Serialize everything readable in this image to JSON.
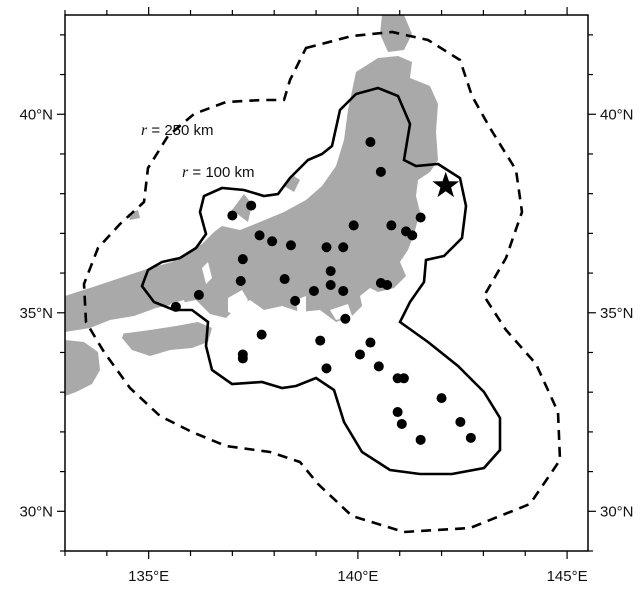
{
  "map": {
    "lon_range": [
      133,
      145.5
    ],
    "lat_range": [
      29,
      42.5
    ],
    "land_color": "#a9a9a9",
    "station_color": "#000000",
    "x_ticks": [
      {
        "lon": 135,
        "label": "135°E"
      },
      {
        "lon": 140,
        "label": "140°E"
      },
      {
        "lon": 145,
        "label": "145°E"
      }
    ],
    "y_ticks": [
      {
        "lat": 30,
        "label": "30°N"
      },
      {
        "lat": 35,
        "label": "35°N"
      },
      {
        "lat": 40,
        "label": "40°N"
      }
    ],
    "annotations": {
      "r250": {
        "var": "r",
        "text": " = 250 km"
      },
      "r100": {
        "var": "r",
        "text": " = 100 km"
      }
    },
    "epicenter": {
      "lon": 142.1,
      "lat": 38.2,
      "symbol": "star-icon"
    },
    "stations": [
      [
        140.3,
        39.3
      ],
      [
        140.55,
        38.55
      ],
      [
        141.5,
        37.4
      ],
      [
        141.15,
        37.05
      ],
      [
        141.3,
        36.95
      ],
      [
        140.8,
        37.2
      ],
      [
        139.9,
        37.2
      ],
      [
        137.0,
        37.45
      ],
      [
        137.45,
        37.7
      ],
      [
        137.65,
        36.95
      ],
      [
        137.95,
        36.8
      ],
      [
        138.4,
        36.7
      ],
      [
        137.25,
        36.35
      ],
      [
        137.2,
        35.8
      ],
      [
        138.25,
        35.85
      ],
      [
        139.25,
        36.65
      ],
      [
        139.65,
        36.65
      ],
      [
        139.35,
        36.05
      ],
      [
        139.35,
        35.7
      ],
      [
        139.65,
        35.55
      ],
      [
        140.55,
        35.75
      ],
      [
        140.7,
        35.7
      ],
      [
        138.5,
        35.3
      ],
      [
        138.95,
        35.55
      ],
      [
        136.2,
        35.45
      ],
      [
        135.65,
        35.15
      ],
      [
        137.7,
        34.45
      ],
      [
        139.7,
        34.85
      ],
      [
        139.1,
        34.3
      ],
      [
        140.3,
        34.25
      ],
      [
        140.05,
        33.95
      ],
      [
        137.25,
        33.85
      ],
      [
        137.25,
        33.95
      ],
      [
        139.25,
        33.6
      ],
      [
        140.5,
        33.65
      ],
      [
        140.95,
        33.35
      ],
      [
        141.1,
        33.35
      ],
      [
        142.0,
        32.85
      ],
      [
        140.95,
        32.5
      ],
      [
        141.05,
        32.2
      ],
      [
        142.45,
        32.25
      ],
      [
        142.7,
        31.85
      ],
      [
        141.5,
        31.8
      ]
    ]
  }
}
